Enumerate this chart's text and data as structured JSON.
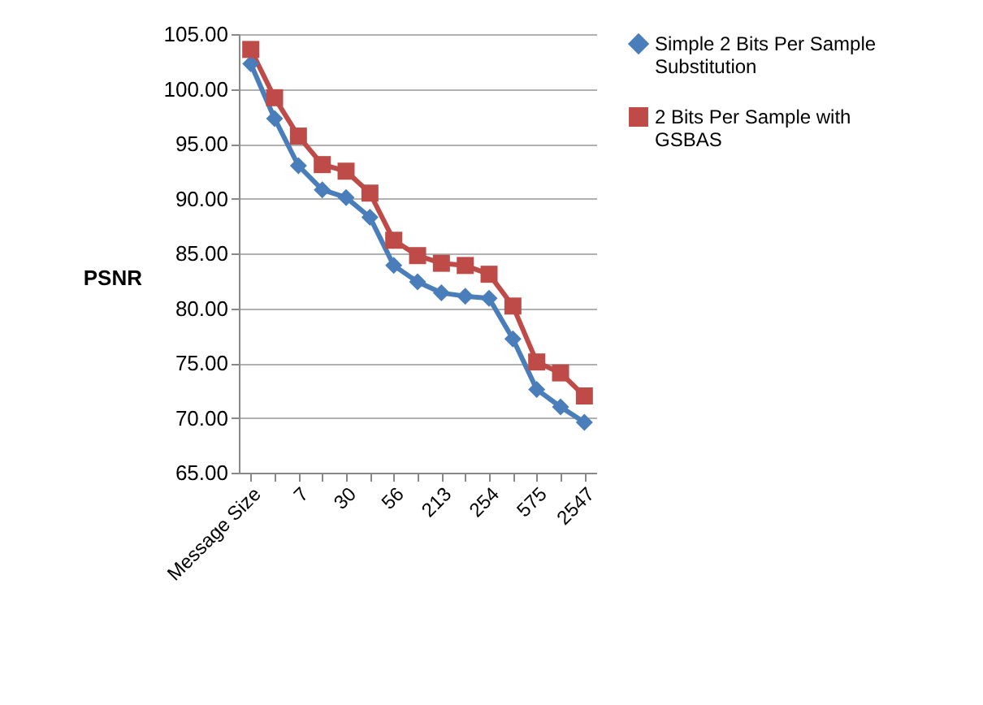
{
  "chart_data": {
    "type": "line",
    "ylabel": "PSNR",
    "categories": [
      "Message Size",
      null,
      "7",
      null,
      "30",
      null,
      "56",
      null,
      "213",
      null,
      "254",
      null,
      "575",
      null,
      "2547"
    ],
    "series": [
      {
        "name": "Simple 2 Bits Per Sample Substitution",
        "color": "#4a7ebb",
        "marker": "diamond",
        "values": [
          102.3,
          97.3,
          93.0,
          90.8,
          90.1,
          88.3,
          83.9,
          82.4,
          81.4,
          81.1,
          80.9,
          77.2,
          72.6,
          71.0,
          69.6
        ]
      },
      {
        "name": "2 Bits Per Sample with GSBAS",
        "color": "#be4b48",
        "marker": "square",
        "values": [
          103.6,
          99.2,
          95.7,
          93.1,
          92.5,
          90.5,
          86.2,
          84.8,
          84.1,
          83.9,
          83.1,
          80.2,
          75.1,
          74.1,
          72.0
        ]
      }
    ],
    "ylim": [
      65,
      105
    ],
    "yticks": [
      {
        "value": 65,
        "label": "65.00"
      },
      {
        "value": 70,
        "label": "70.00"
      },
      {
        "value": 75,
        "label": "75.00"
      },
      {
        "value": 80,
        "label": "80.00"
      },
      {
        "value": 85,
        "label": "85.00"
      },
      {
        "value": 90,
        "label": "90.00"
      },
      {
        "value": 95,
        "label": "95.00"
      },
      {
        "value": 100,
        "label": "100.00"
      },
      {
        "value": 105,
        "label": "105.00"
      }
    ],
    "grid": "y",
    "legend": "right"
  }
}
